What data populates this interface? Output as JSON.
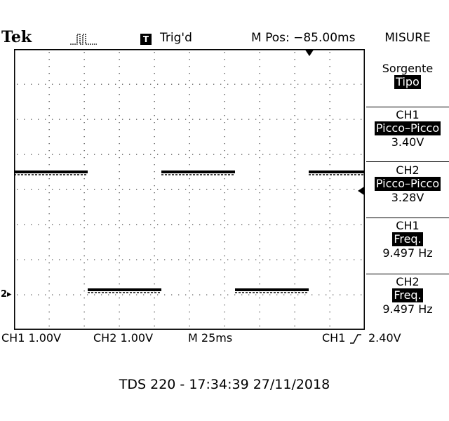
{
  "header": {
    "brand": "Tek",
    "acq_icon": "pulse-acquire-icon",
    "trig_badge": "T",
    "trig_status": "Trig'd",
    "m_pos": "M Pos: −85.00ms",
    "menu_title": "MISURE"
  },
  "menu": {
    "source_label": "Sorgente",
    "type_label": "Tipo",
    "measurements": [
      {
        "channel": "CH1",
        "type": "Picco–Picco",
        "value": "3.40V"
      },
      {
        "channel": "CH2",
        "type": "Picco–Picco",
        "value": "3.28V"
      },
      {
        "channel": "CH1",
        "type": "Freq.",
        "value": "9.497 Hz"
      },
      {
        "channel": "CH2",
        "type": "Freq.",
        "value": "9.497 Hz"
      }
    ]
  },
  "status": {
    "ch1_scale": "CH1 1.00V",
    "ch2_scale": "CH2 1.00V",
    "time_scale": "M 25ms",
    "trigger_source": "CH1",
    "trigger_slope_icon": "rising-edge-icon",
    "trigger_level": "2.40V"
  },
  "markers": {
    "ch2_ground": "2"
  },
  "footer": {
    "text": "TDS 220 - 17:34:39   27/11/2018"
  },
  "traces": {
    "ch1_segments": [
      [
        0.0,
        0.21
      ],
      [
        0.42,
        0.63
      ],
      [
        0.84,
        1.0
      ]
    ],
    "ch2_segments": [
      [
        0.21,
        0.42
      ],
      [
        0.63,
        0.84
      ]
    ]
  }
}
